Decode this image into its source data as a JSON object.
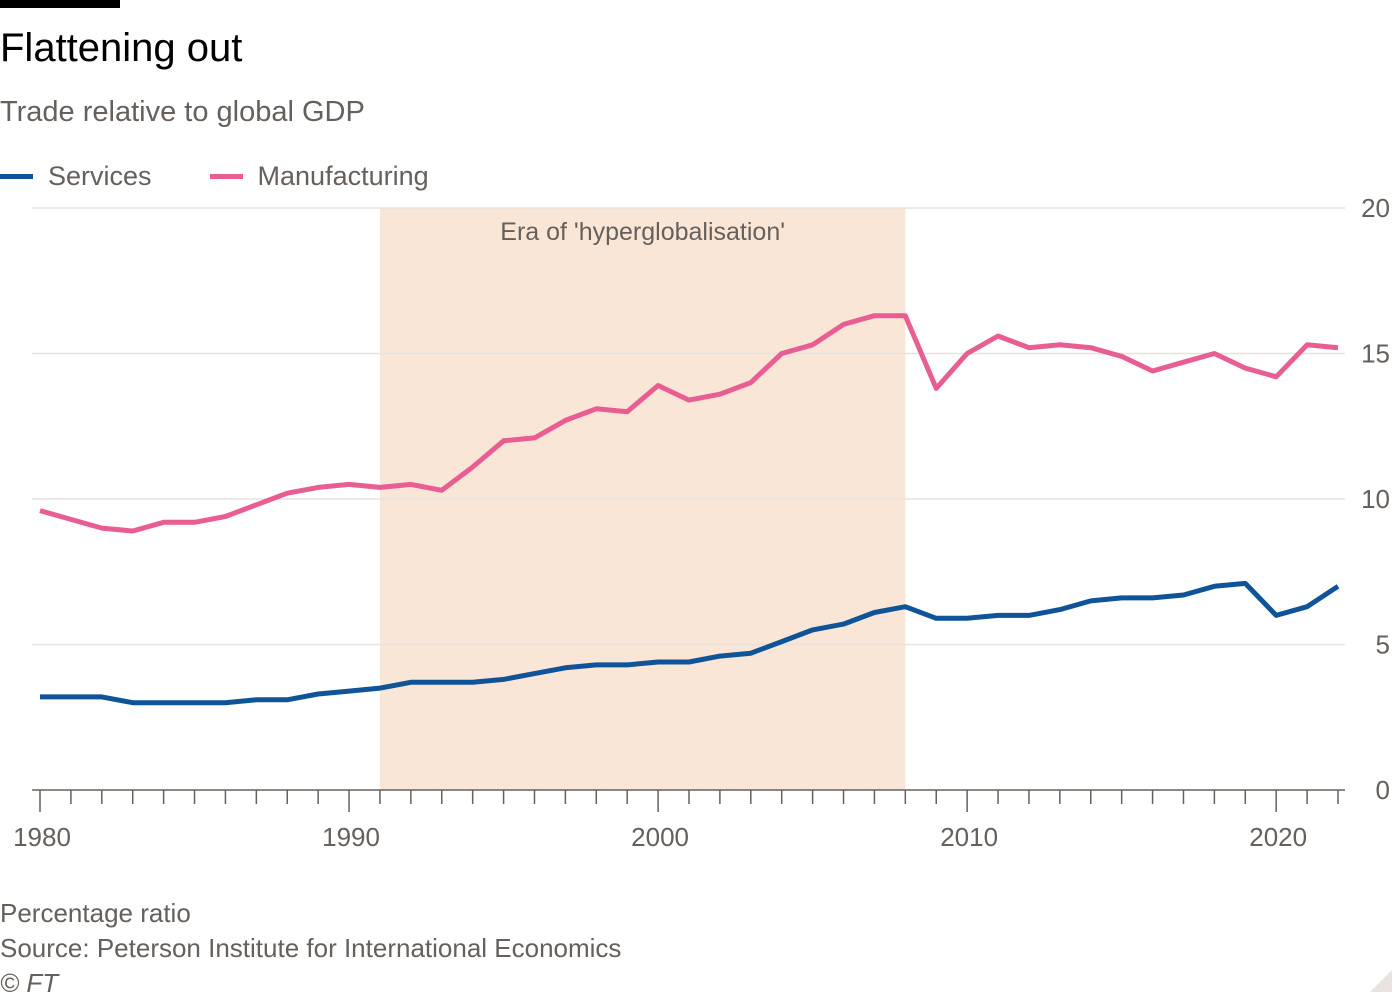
{
  "header": {
    "title": "Flattening out",
    "subtitle": "Trade relative to global GDP"
  },
  "legend": [
    {
      "label": "Services",
      "color": "#0f5499"
    },
    {
      "label": "Manufacturing",
      "color": "#e85e93"
    }
  ],
  "footer": {
    "note": "Percentage ratio",
    "source": "Source: Peterson Institute for International Economics",
    "copyright": "© FT"
  },
  "chart_data": {
    "type": "line",
    "title": "Flattening out",
    "subtitle": "Trade relative to global GDP",
    "xlabel": "",
    "ylabel": "Percentage ratio",
    "xlim": [
      1980,
      2022
    ],
    "ylim": [
      0,
      20
    ],
    "x_ticks": [
      1980,
      1990,
      2000,
      2010,
      2020
    ],
    "y_ticks": [
      0,
      5,
      10,
      15,
      20
    ],
    "grid": true,
    "legend_position": "top-left",
    "shaded_period": {
      "start": 1991,
      "end": 2008,
      "label": "Era of 'hyperglobalisation'",
      "color": "#fae6d6"
    },
    "x": [
      1980,
      1981,
      1982,
      1983,
      1984,
      1985,
      1986,
      1987,
      1988,
      1989,
      1990,
      1991,
      1992,
      1993,
      1994,
      1995,
      1996,
      1997,
      1998,
      1999,
      2000,
      2001,
      2002,
      2003,
      2004,
      2005,
      2006,
      2007,
      2008,
      2009,
      2010,
      2011,
      2012,
      2013,
      2014,
      2015,
      2016,
      2017,
      2018,
      2019,
      2020,
      2021,
      2022
    ],
    "series": [
      {
        "name": "Services",
        "color": "#0f5499",
        "values": [
          3.2,
          3.2,
          3.2,
          3.0,
          3.0,
          3.0,
          3.0,
          3.1,
          3.1,
          3.3,
          3.4,
          3.5,
          3.7,
          3.7,
          3.7,
          3.8,
          4.0,
          4.2,
          4.3,
          4.3,
          4.4,
          4.4,
          4.6,
          4.7,
          5.1,
          5.5,
          5.7,
          6.1,
          6.3,
          5.9,
          5.9,
          6.0,
          6.0,
          6.2,
          6.5,
          6.6,
          6.6,
          6.7,
          7.0,
          7.1,
          6.0,
          6.3,
          7.0
        ]
      },
      {
        "name": "Manufacturing",
        "color": "#e85e93",
        "values": [
          9.6,
          9.3,
          9.0,
          8.9,
          9.2,
          9.2,
          9.4,
          9.8,
          10.2,
          10.4,
          10.5,
          10.4,
          10.5,
          10.3,
          11.1,
          12.0,
          12.1,
          12.7,
          13.1,
          13.0,
          13.9,
          13.4,
          13.6,
          14.0,
          15.0,
          15.3,
          16.0,
          16.3,
          16.3,
          13.8,
          15.0,
          15.6,
          15.2,
          15.3,
          15.2,
          14.9,
          14.4,
          14.7,
          15.0,
          14.5,
          14.2,
          15.3,
          15.2
        ]
      }
    ]
  }
}
